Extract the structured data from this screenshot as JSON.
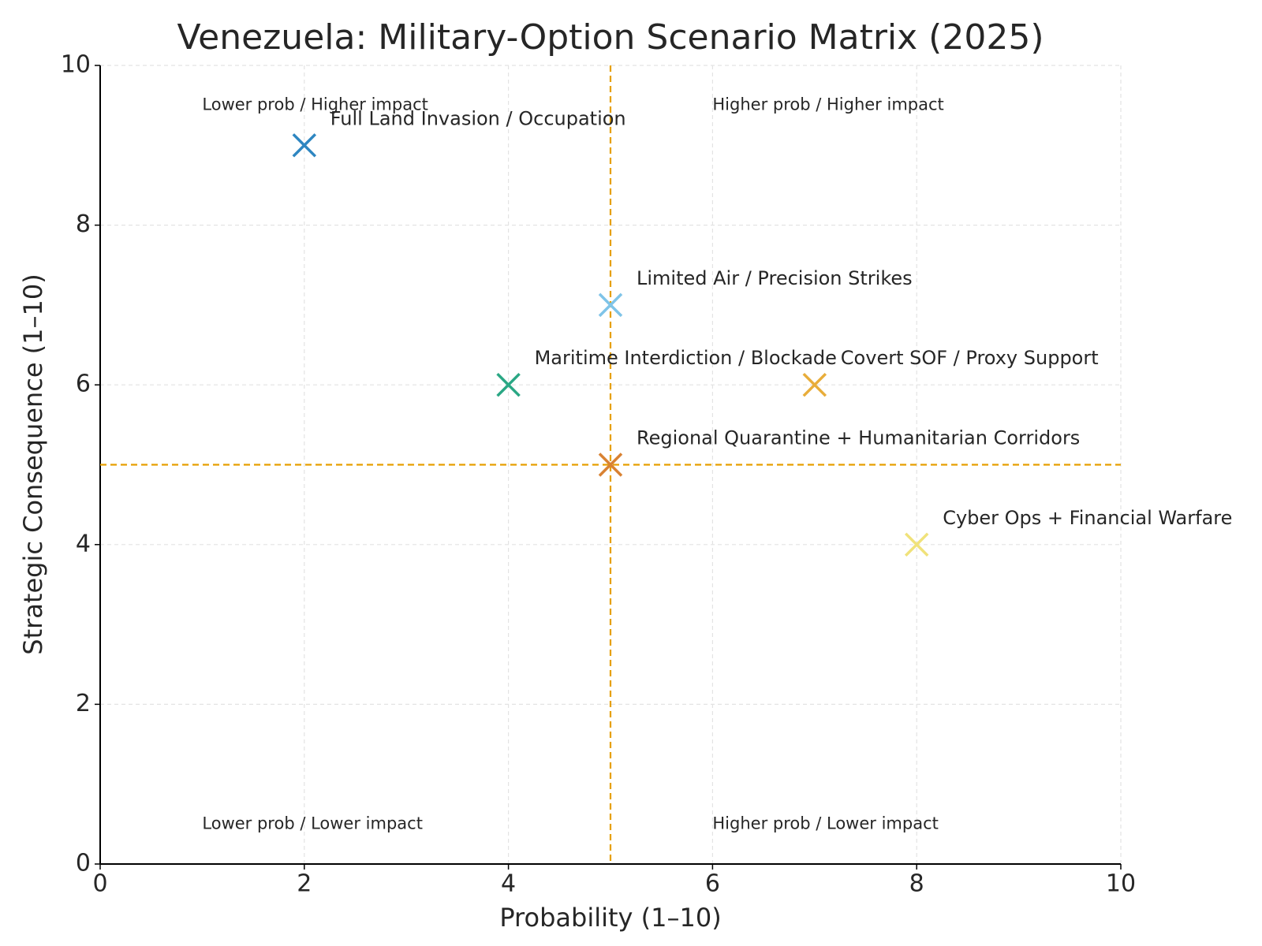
{
  "chart_data": {
    "type": "scatter",
    "title": "Venezuela: Military-Option Scenario Matrix (2025)",
    "x_label": "Probability (1–10)",
    "y_label": "Strategic Consequence (1–10)",
    "xlim": [
      0,
      10
    ],
    "ylim": [
      0,
      10
    ],
    "xticks": [
      0,
      2,
      4,
      6,
      8,
      10
    ],
    "yticks": [
      0,
      2,
      4,
      6,
      8,
      10
    ],
    "grid": true,
    "marker": "x",
    "reference_line_color": "#e69f00",
    "vlines": [
      5
    ],
    "hlines": [
      5
    ],
    "series": [
      {
        "name": "Full Land Invasion / Occupation",
        "color": "#2e86c1",
        "x": [
          2
        ],
        "values": [
          9
        ]
      },
      {
        "name": "Limited Air / Precision Strikes",
        "color": "#7fc4e8",
        "x": [
          5
        ],
        "values": [
          7
        ]
      },
      {
        "name": "Maritime Interdiction / Blockade",
        "color": "#2aa784",
        "x": [
          4
        ],
        "values": [
          6
        ]
      },
      {
        "name": "Covert SOF / Proxy Support",
        "color": "#e8ad3a",
        "x": [
          7
        ],
        "values": [
          6
        ]
      },
      {
        "name": "Regional Quarantine + Humanitarian Corridors",
        "color": "#d98232",
        "x": [
          5
        ],
        "values": [
          5
        ]
      },
      {
        "name": "Cyber Ops + Financial Warfare",
        "color": "#f0e27a",
        "x": [
          8
        ],
        "values": [
          4
        ]
      }
    ],
    "annotations": [
      {
        "text": "Lower prob / Higher impact",
        "x": 1,
        "y": 9.5
      },
      {
        "text": "Higher prob / Higher impact",
        "x": 6,
        "y": 9.5
      },
      {
        "text": "Lower prob / Lower impact",
        "x": 1,
        "y": 0.5
      },
      {
        "text": "Higher prob / Lower impact",
        "x": 6,
        "y": 0.5
      }
    ]
  }
}
